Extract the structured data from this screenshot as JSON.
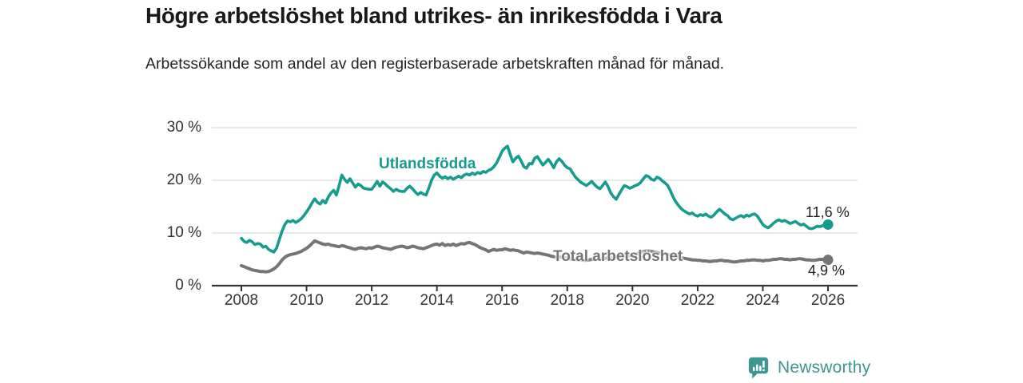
{
  "header": {
    "title": "Högre arbetslöshet bland utrikes- än inrikesfödda i Vara",
    "subtitle": "Arbetssökande som andel av den registerbaserade arbetskraften månad för månad."
  },
  "footer": {
    "brand": "Newsworthy",
    "brand_icon": "newsworthy-chart-bubble-icon"
  },
  "colors": {
    "teal": "#169c8f",
    "gray": "#757575",
    "gridline": "#dcdcdc",
    "axis": "#333333",
    "title_text": "#191919",
    "tick_text": "#333333",
    "value_label_text": "#222222",
    "logo_teal": "#3d968f",
    "background": "#ffffff"
  },
  "chart_data": {
    "type": "line",
    "title": "Högre arbetslöshet bland utrikes- än inrikesfödda i Vara",
    "subtitle": "Arbetssökande som andel av den registerbaserade arbetskraften månad för månad.",
    "grid": "horizontal",
    "legend_position": "inline-labels",
    "x_start": 2008,
    "x_step_years": 0.0833333,
    "x_axis": {
      "label": "",
      "ticks_years": [
        2008,
        2010,
        2012,
        2014,
        2016,
        2018,
        2020,
        2022,
        2024,
        2026
      ],
      "tick_labels": [
        "2008",
        "2010",
        "2012",
        "2014",
        "2016",
        "2018",
        "2020",
        "2022",
        "2024",
        "2026"
      ]
    },
    "y_axis": {
      "label": "",
      "range": [
        0,
        30
      ],
      "ticks": [
        0,
        10,
        20,
        30
      ],
      "tick_labels": [
        "0 %",
        "10 %",
        "20 %",
        "30 %"
      ]
    },
    "series": [
      {
        "name": "Total arbetslöshet",
        "color": "#757575",
        "end_value": 4.9,
        "end_label": "4,9 %",
        "values": [
          3.8,
          3.6,
          3.4,
          3.2,
          3.0,
          2.9,
          2.8,
          2.7,
          2.7,
          2.6,
          2.7,
          2.9,
          3.2,
          3.6,
          4.2,
          4.9,
          5.4,
          5.7,
          5.9,
          6.0,
          6.1,
          6.3,
          6.5,
          6.8,
          7.1,
          7.5,
          8.0,
          8.5,
          8.3,
          8.1,
          7.9,
          7.8,
          7.9,
          7.7,
          7.6,
          7.5,
          7.4,
          7.6,
          7.5,
          7.3,
          7.2,
          7.0,
          6.9,
          7.1,
          7.2,
          7.1,
          7.0,
          7.2,
          7.1,
          7.3,
          7.5,
          7.4,
          7.2,
          7.1,
          7.0,
          6.9,
          7.1,
          7.3,
          7.4,
          7.5,
          7.4,
          7.2,
          7.3,
          7.5,
          7.4,
          7.2,
          7.1,
          7.0,
          7.2,
          7.4,
          7.6,
          7.8,
          7.9,
          7.7,
          8.0,
          7.6,
          7.8,
          7.7,
          7.9,
          7.6,
          7.8,
          8.0,
          7.9,
          8.1,
          8.2,
          8.0,
          7.8,
          7.5,
          7.2,
          7.0,
          6.8,
          6.5,
          6.7,
          6.9,
          6.7,
          6.8,
          6.8,
          7.0,
          6.9,
          6.7,
          6.8,
          6.7,
          6.6,
          6.4,
          6.2,
          6.4,
          6.3,
          6.2,
          6.1,
          6.2,
          6.1,
          6.0,
          5.9,
          5.8,
          5.6,
          5.5,
          5.4,
          5.5,
          5.4,
          5.3,
          5.2,
          5.1,
          5.0,
          5.0,
          4.9,
          4.9,
          4.8,
          4.8,
          4.9,
          5.0,
          5.0,
          5.1,
          5.1,
          5.2,
          5.2,
          5.3,
          5.3,
          5.4,
          5.4,
          5.5,
          5.5,
          5.6,
          5.6,
          5.7,
          5.8,
          5.9,
          6.1,
          6.3,
          6.5,
          6.6,
          6.6,
          6.5,
          6.4,
          6.3,
          6.2,
          6.1,
          6.0,
          5.9,
          5.8,
          5.6,
          5.5,
          5.4,
          5.3,
          5.2,
          5.1,
          5.0,
          4.9,
          4.9,
          4.8,
          4.8,
          4.7,
          4.7,
          4.6,
          4.6,
          4.7,
          4.7,
          4.8,
          4.8,
          4.7,
          4.7,
          4.6,
          4.5,
          4.5,
          4.6,
          4.7,
          4.7,
          4.8,
          4.8,
          4.9,
          4.9,
          4.8,
          4.8,
          4.7,
          4.8,
          4.8,
          4.9,
          5.0,
          5.0,
          5.1,
          5.1,
          5.0,
          5.0,
          4.9,
          5.0,
          5.0,
          5.1,
          5.1,
          5.0,
          4.9,
          4.9,
          4.8,
          4.8,
          4.9,
          5.0,
          5.0,
          4.9,
          4.9
        ]
      },
      {
        "name": "Utlandsfödda",
        "color": "#169c8f",
        "end_value": 11.6,
        "end_label": "11,6 %",
        "values": [
          9.0,
          8.4,
          8.2,
          8.6,
          8.3,
          7.8,
          8.0,
          7.9,
          7.3,
          7.5,
          6.9,
          6.6,
          6.4,
          7.2,
          8.8,
          10.4,
          11.6,
          12.3,
          12.1,
          12.4,
          12.0,
          12.3,
          12.7,
          13.3,
          14.0,
          14.8,
          15.7,
          16.5,
          15.8,
          15.5,
          16.2,
          15.7,
          16.8,
          17.6,
          18.1,
          17.2,
          19.0,
          21.0,
          20.2,
          19.6,
          20.3,
          19.5,
          18.7,
          19.3,
          19.0,
          18.5,
          18.4,
          18.3,
          18.3,
          19.0,
          19.8,
          18.9,
          19.7,
          19.3,
          18.8,
          18.4,
          17.9,
          18.3,
          18.0,
          17.9,
          17.9,
          18.5,
          18.9,
          18.4,
          17.8,
          17.3,
          17.7,
          17.4,
          17.2,
          18.5,
          20.0,
          21.0,
          21.4,
          20.8,
          20.4,
          20.7,
          20.3,
          20.6,
          20.2,
          20.5,
          20.8,
          20.5,
          21.0,
          21.2,
          21.0,
          21.4,
          21.1,
          21.5,
          21.3,
          21.7,
          21.5,
          21.9,
          22.1,
          22.6,
          23.3,
          24.4,
          25.5,
          26.1,
          26.5,
          24.9,
          23.5,
          24.2,
          24.6,
          23.7,
          22.6,
          22.3,
          23.2,
          23.1,
          24.2,
          24.5,
          23.7,
          22.9,
          23.4,
          24.0,
          23.3,
          22.4,
          23.5,
          24.1,
          23.6,
          22.9,
          22.4,
          22.2,
          21.4,
          20.6,
          20.1,
          19.6,
          19.3,
          19.0,
          19.4,
          19.8,
          19.2,
          18.7,
          18.4,
          19.0,
          19.7,
          18.8,
          17.6,
          16.9,
          16.4,
          17.3,
          18.2,
          19.0,
          18.8,
          18.5,
          18.7,
          19.0,
          19.2,
          19.6,
          20.3,
          20.9,
          20.7,
          20.2,
          20.0,
          20.6,
          20.4,
          19.9,
          19.5,
          19.0,
          18.0,
          16.8,
          15.9,
          15.2,
          14.6,
          14.2,
          13.9,
          13.6,
          13.8,
          13.4,
          13.2,
          13.5,
          13.3,
          13.6,
          13.2,
          13.0,
          13.4,
          14.0,
          14.5,
          14.1,
          13.6,
          13.3,
          12.7,
          12.5,
          12.8,
          13.1,
          13.3,
          13.0,
          13.4,
          13.2,
          13.5,
          13.6,
          13.2,
          12.4,
          11.6,
          11.2,
          11.0,
          11.4,
          11.9,
          12.3,
          12.5,
          12.2,
          12.4,
          12.1,
          11.8,
          12.0,
          12.2,
          11.8,
          11.5,
          11.7,
          11.3,
          10.9,
          10.8,
          11.0,
          11.3,
          11.2,
          11.4,
          11.6,
          11.6
        ]
      }
    ]
  }
}
